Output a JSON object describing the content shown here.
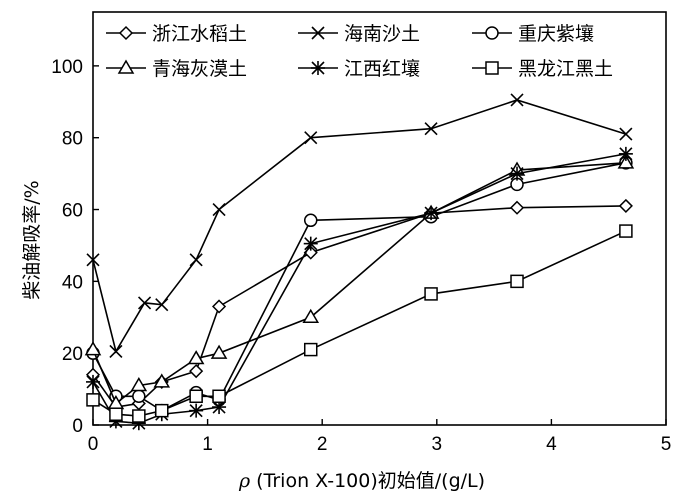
{
  "chart_data": {
    "type": "line",
    "xlabel_prefix": "ρ",
    "xlabel": " (Trion X-100)初始值/(g/L)",
    "ylabel": "柴油解吸率/%",
    "xlim": [
      0,
      5
    ],
    "ylim": [
      0,
      115
    ],
    "xticks": [
      0,
      1,
      2,
      3,
      4,
      5
    ],
    "yticks": [
      0,
      20,
      40,
      60,
      80,
      100
    ],
    "legend_position": "top",
    "series": [
      {
        "name": "浙江水稻土",
        "marker": "diamond",
        "x": [
          0,
          0.2,
          0.4,
          0.6,
          0.9,
          1.1,
          1.9,
          2.95,
          3.7,
          4.65
        ],
        "y": [
          14,
          5,
          6,
          12,
          15,
          33,
          48,
          59,
          60.5,
          61
        ]
      },
      {
        "name": "海南沙土",
        "marker": "x",
        "x": [
          0,
          0.2,
          0.45,
          0.6,
          0.9,
          1.1,
          1.9,
          2.95,
          3.7,
          4.65
        ],
        "y": [
          46,
          20.5,
          34,
          33.5,
          46,
          60,
          80,
          82.5,
          90.5,
          81
        ]
      },
      {
        "name": "重庆紫壤",
        "marker": "circle",
        "x": [
          0,
          0.2,
          0.4,
          0.6,
          0.9,
          1.1,
          1.9,
          2.95,
          3.7,
          4.65
        ],
        "y": [
          20,
          8,
          8,
          4,
          9,
          7,
          57,
          58,
          67,
          73
        ]
      },
      {
        "name": "青海灰漠土",
        "marker": "triangle",
        "x": [
          0,
          0.2,
          0.4,
          0.6,
          0.9,
          1.1,
          1.9,
          2.95,
          3.7,
          4.65
        ],
        "y": [
          21,
          6,
          11,
          12,
          18.5,
          20,
          30,
          59,
          71,
          73
        ]
      },
      {
        "name": "江西红壤",
        "marker": "asterisk",
        "x": [
          0,
          0.2,
          0.4,
          0.6,
          0.9,
          1.1,
          1.9,
          2.95,
          3.7,
          4.65
        ],
        "y": [
          12,
          1,
          0.5,
          3,
          4,
          5,
          50.5,
          59,
          70,
          75.5
        ]
      },
      {
        "name": "黑龙江黑土",
        "marker": "square",
        "x": [
          0,
          0.2,
          0.4,
          0.6,
          0.9,
          1.1,
          1.9,
          2.95,
          3.7,
          4.65
        ],
        "y": [
          7,
          3,
          2.5,
          4,
          8,
          8,
          21,
          36.5,
          40,
          54
        ]
      }
    ]
  }
}
